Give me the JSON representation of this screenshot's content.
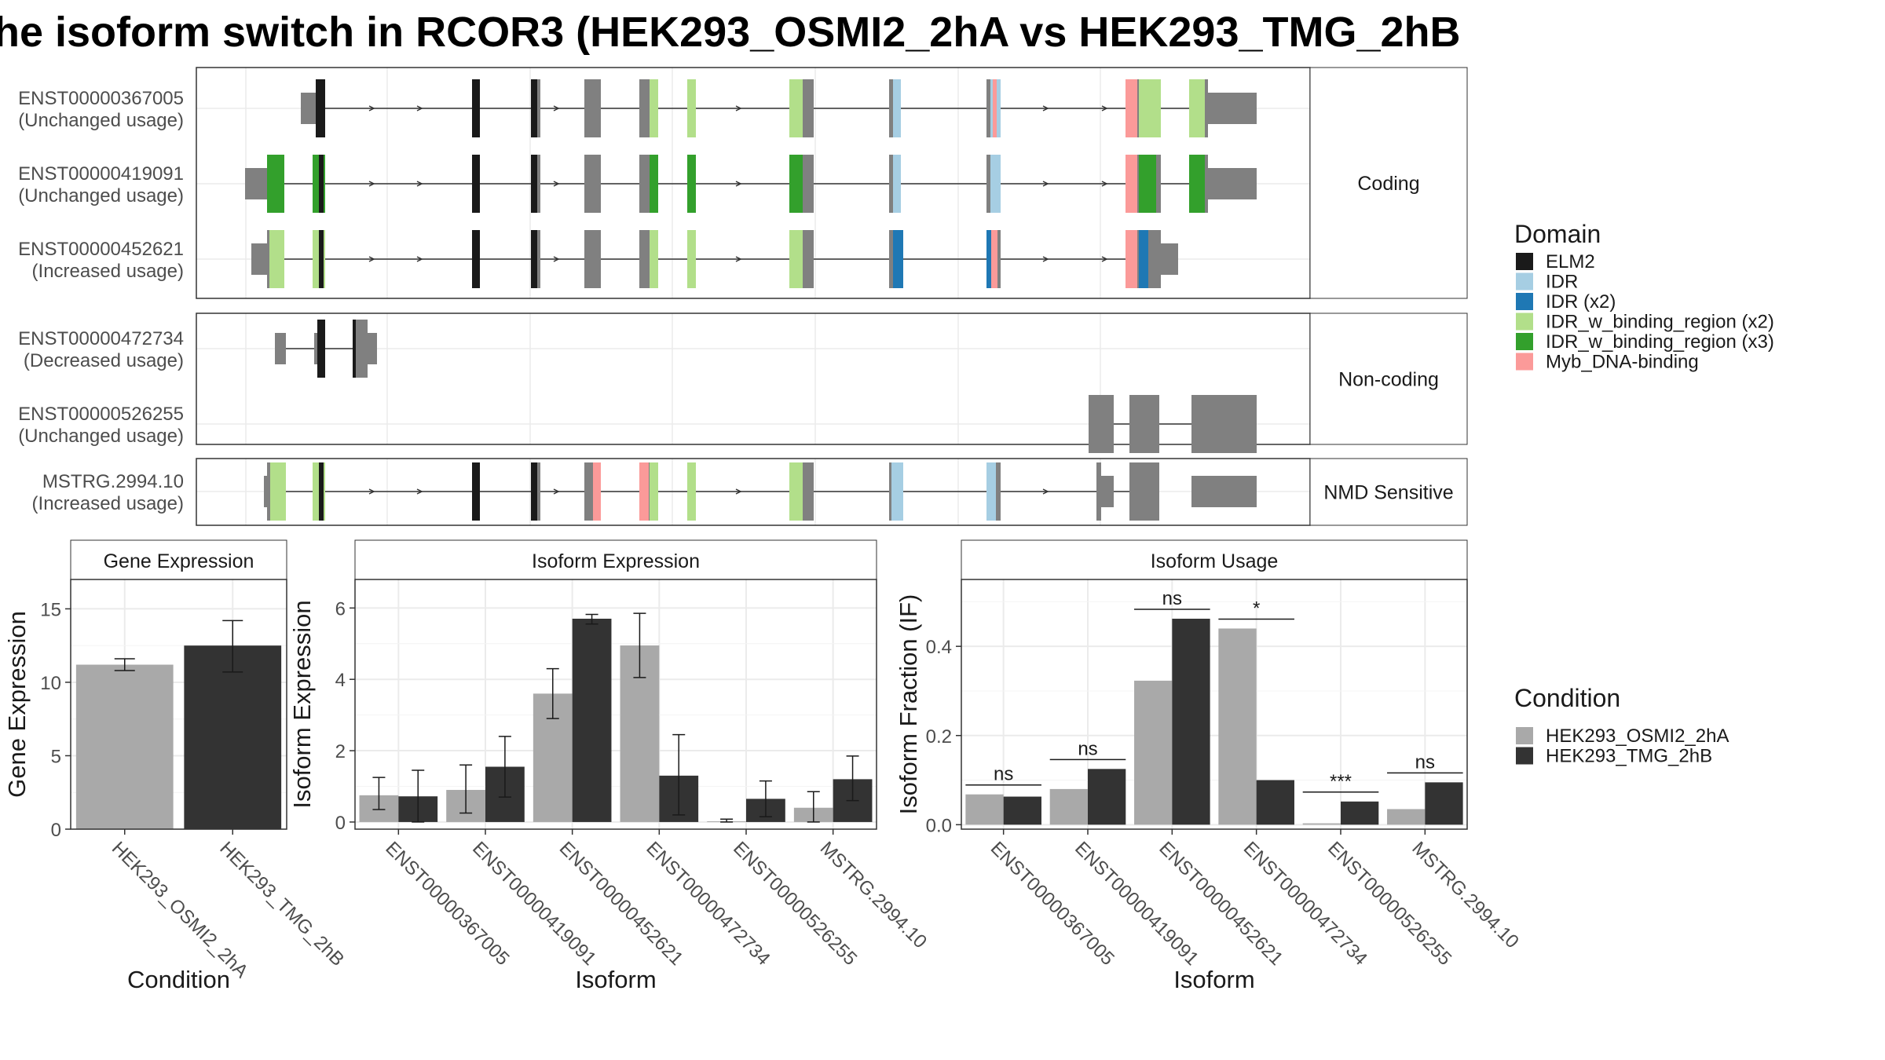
{
  "title": "he isoform switch in RCOR3 (HEK293_OSMI2_2hA vs HEK293_TMG_2hB",
  "colors": {
    "ELM2": "#1a1a1a",
    "IDR": "#a6cee3",
    "IDR (x2)": "#1f78b4",
    "IDR_w_binding_region (x2)": "#b2df8a",
    "IDR_w_binding_region (x3)": "#33a02c",
    "Myb_DNA-binding": "#fb9a99",
    "exon": "#808080",
    "cond1": "#a9a9a9",
    "cond2": "#333333"
  },
  "facets": [
    {
      "label": "Coding",
      "tracks": [
        {
          "id": "ENST00000367005",
          "usage": "(Unchanged usage)"
        },
        {
          "id": "ENST00000419091",
          "usage": "(Unchanged usage)"
        },
        {
          "id": "ENST00000452621",
          "usage": "(Increased usage)"
        }
      ]
    },
    {
      "label": "Non-coding",
      "tracks": [
        {
          "id": "ENST00000472734",
          "usage": "(Decreased usage)"
        },
        {
          "id": "ENST00000526255",
          "usage": "(Unchanged usage)"
        }
      ]
    },
    {
      "label": "NMD Sensitive",
      "tracks": [
        {
          "id": "MSTRG.2994.10",
          "usage": "(Increased usage)"
        }
      ]
    }
  ],
  "legend_domain": {
    "title": "Domain",
    "items": [
      "ELM2",
      "IDR",
      "IDR (x2)",
      "IDR_w_binding_region (x2)",
      "IDR_w_binding_region (x3)",
      "Myb_DNA-binding"
    ]
  },
  "legend_condition": {
    "title": "Condition",
    "items": [
      "HEK293_OSMI2_2hA",
      "HEK293_TMG_2hB"
    ]
  },
  "chart_data": [
    {
      "type": "bar",
      "title": "Gene Expression",
      "xlabel": "Condition",
      "ylabel": "Gene Expression",
      "ylim": [
        0,
        17
      ],
      "yticks": [
        0,
        5,
        10,
        15
      ],
      "categories": [
        "HEK293_OSMI2_2hA",
        "HEK293_TMG_2hB"
      ],
      "values": [
        11.2,
        12.5
      ],
      "errors": [
        [
          10.8,
          11.6
        ],
        [
          10.7,
          14.2
        ]
      ],
      "grid": true
    },
    {
      "type": "bar",
      "title": "Isoform Expression",
      "xlabel": "Isoform",
      "ylabel": "Isoform Expression",
      "ylim": [
        -0.2,
        6.8
      ],
      "yticks": [
        0,
        2,
        4,
        6
      ],
      "categories": [
        "ENST00000367005",
        "ENST00000419091",
        "ENST00000452621",
        "ENST00000472734",
        "ENST00000526255",
        "MSTRG.2994.10"
      ],
      "series": [
        {
          "name": "HEK293_OSMI2_2hA",
          "values": [
            0.75,
            0.9,
            3.6,
            4.95,
            0.02,
            0.4
          ],
          "errors": [
            [
              0.35,
              1.25
            ],
            [
              0.25,
              1.6
            ],
            [
              2.9,
              4.3
            ],
            [
              4.05,
              5.85
            ],
            [
              0.0,
              0.08
            ],
            [
              0.0,
              0.85
            ]
          ]
        },
        {
          "name": "HEK293_TMG_2hB",
          "values": [
            0.72,
            1.55,
            5.7,
            1.3,
            0.65,
            1.2
          ],
          "errors": [
            [
              0.0,
              1.45
            ],
            [
              0.7,
              2.4
            ],
            [
              5.55,
              5.82
            ],
            [
              0.2,
              2.45
            ],
            [
              0.15,
              1.15
            ],
            [
              0.6,
              1.85
            ]
          ]
        }
      ],
      "grid": true
    },
    {
      "type": "bar",
      "title": "Isoform Usage",
      "xlabel": "Isoform",
      "ylabel": "Isoform Fraction (IF)",
      "ylim": [
        -0.01,
        0.55
      ],
      "yticks": [
        0.0,
        0.2,
        0.4
      ],
      "yticklabels": [
        "0.0",
        "0.2",
        "0.4"
      ],
      "categories": [
        "ENST00000367005",
        "ENST00000419091",
        "ENST00000452621",
        "ENST00000472734",
        "ENST00000526255",
        "MSTRG.2994.10"
      ],
      "series": [
        {
          "name": "HEK293_OSMI2_2hA",
          "values": [
            0.068,
            0.08,
            0.323,
            0.44,
            0.003,
            0.035
          ]
        },
        {
          "name": "HEK293_TMG_2hB",
          "values": [
            0.063,
            0.125,
            0.462,
            0.1,
            0.052,
            0.095
          ]
        }
      ],
      "significance": [
        "ns",
        "ns",
        "ns",
        "*",
        "***",
        "ns"
      ],
      "grid": true
    }
  ]
}
